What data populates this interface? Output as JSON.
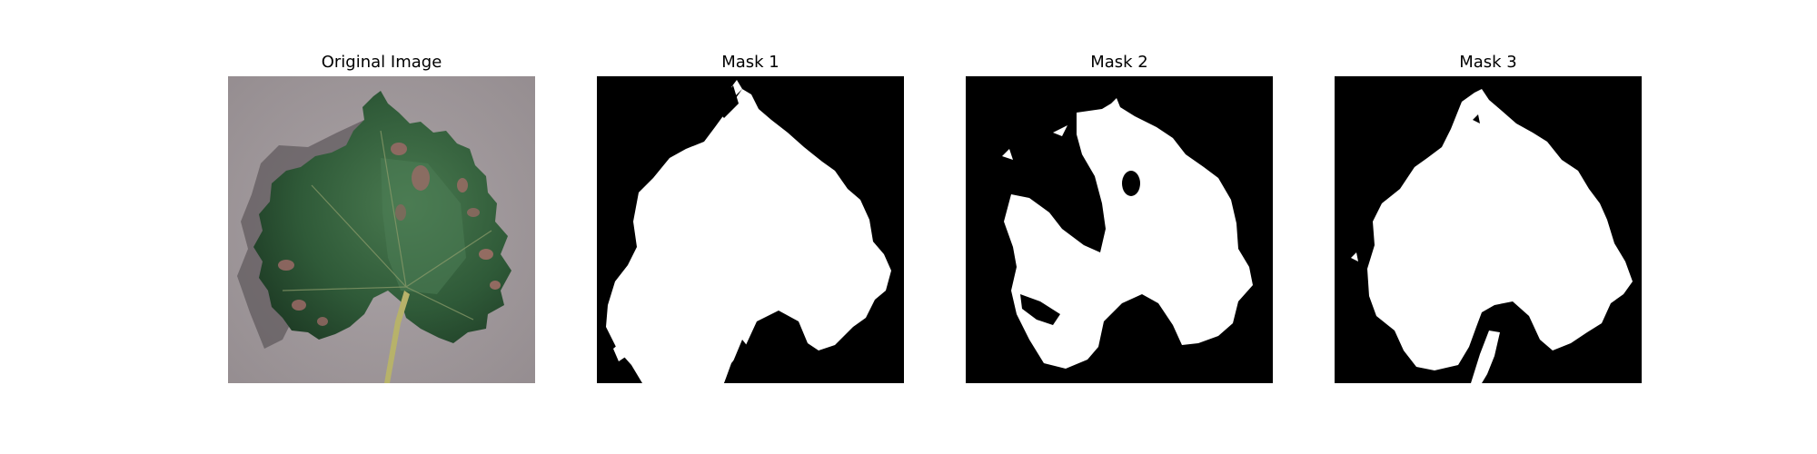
{
  "figure": {
    "panels": [
      {
        "title": "Original Image",
        "kind": "photo",
        "subject": "grapevine leaf with reddish-brown disease spots on grey background"
      },
      {
        "title": "Mask 1",
        "kind": "mask",
        "foreground": "#ffffff",
        "background": "#000000"
      },
      {
        "title": "Mask 2",
        "kind": "mask",
        "foreground": "#ffffff",
        "background": "#000000"
      },
      {
        "title": "Mask 3",
        "kind": "mask",
        "foreground": "#ffffff",
        "background": "#000000"
      }
    ],
    "colors": {
      "background": "#ffffff",
      "photo_background": "#a39b9e",
      "leaf_dark": "#23452c",
      "leaf_mid": "#3d6b44",
      "lesion": "#9b6a66",
      "stem": "#b7b26a"
    }
  }
}
